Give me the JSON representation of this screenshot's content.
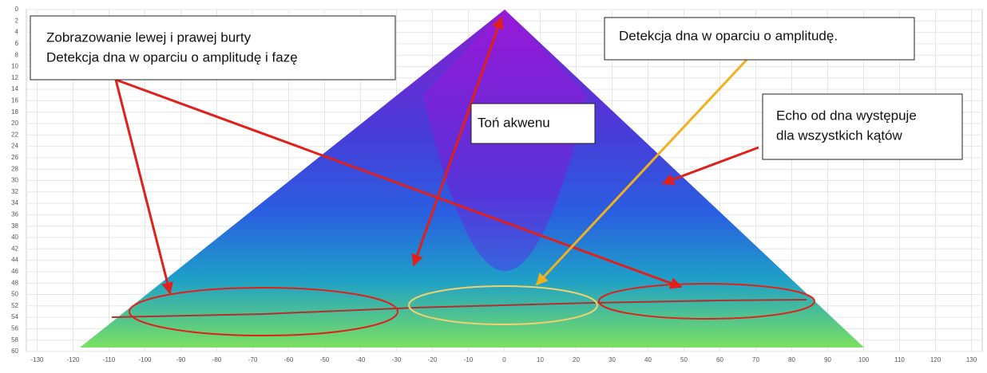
{
  "chart_data": {
    "type": "sonar-image",
    "xlim": [
      -133,
      133
    ],
    "xticks": [
      -130,
      -120,
      -110,
      -100,
      -90,
      -80,
      -70,
      -60,
      -50,
      -40,
      -30,
      -20,
      -10,
      0,
      10,
      20,
      30,
      40,
      50,
      60,
      70,
      80,
      90,
      100,
      110,
      120,
      130
    ],
    "ylim": [
      0,
      60
    ],
    "yticks": [
      0,
      2,
      4,
      6,
      8,
      10,
      12,
      14,
      16,
      18,
      20,
      22,
      24,
      26,
      28,
      30,
      32,
      34,
      36,
      38,
      40,
      42,
      44,
      46,
      48,
      50,
      52,
      54,
      56,
      58,
      60
    ],
    "y_inverted": true,
    "grid": true,
    "annotations": [
      {
        "lines": [
          "Zobrazowanie lewej i prawej burty",
          "Detekcja dna w oparciu o amplitudę i fazę"
        ]
      },
      {
        "lines": [
          "Detekcja dna w oparciu o amplitudę."
        ]
      },
      {
        "lines": [
          "Toń akwenu"
        ]
      },
      {
        "lines": [
          "Echo od dna występuje",
          "dla wszystkich kątów"
        ]
      }
    ]
  }
}
